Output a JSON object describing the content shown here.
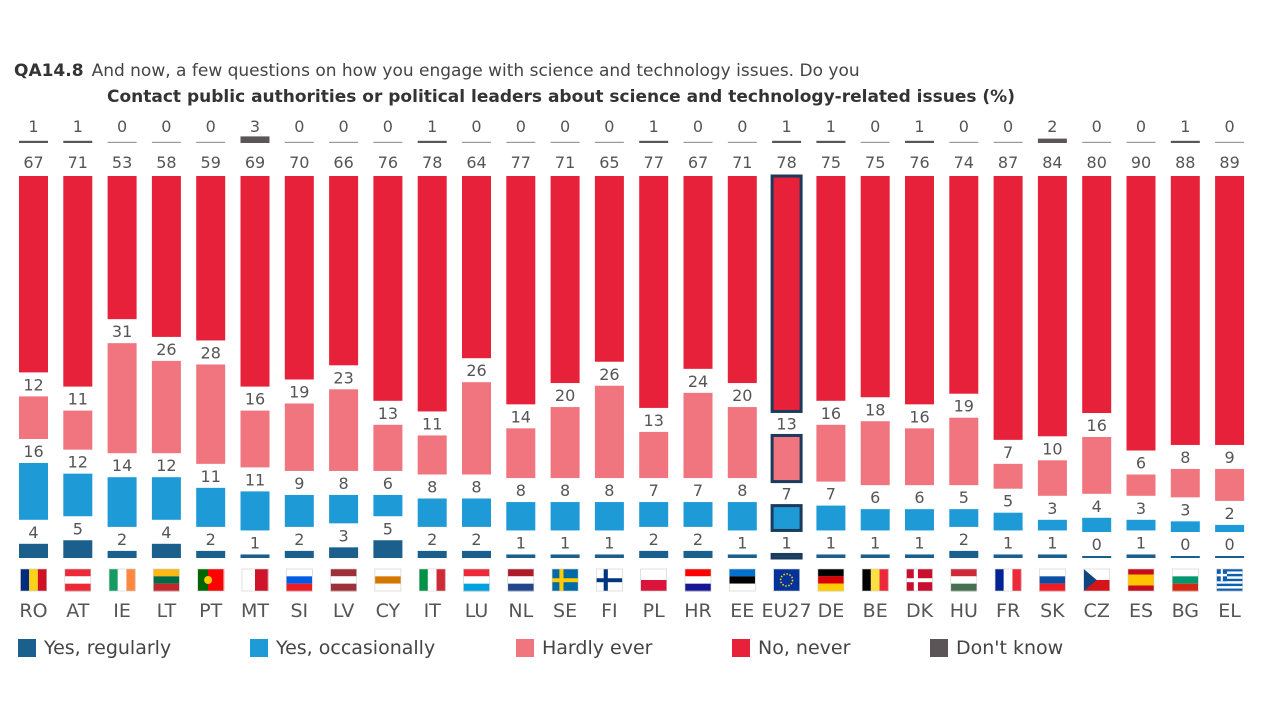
{
  "title": {
    "code": "QA14.8",
    "question": "And now, a few questions on how you engage with science and technology issues. Do you",
    "subtitle": "Contact public authorities or political leaders about science and technology-related issues (%)"
  },
  "colors": {
    "yes_regularly": "#1b5f8c",
    "yes_occasionally": "#1e9bd7",
    "hardly_ever": "#f0757e",
    "no_never": "#e8213a",
    "dont_know": "#5b5557",
    "highlight_border": "#1b3a5c"
  },
  "legend": [
    {
      "key": "yes_regularly",
      "label": "Yes, regularly"
    },
    {
      "key": "yes_occasionally",
      "label": "Yes, occasionally"
    },
    {
      "key": "hardly_ever",
      "label": "Hardly ever"
    },
    {
      "key": "no_never",
      "label": "No, never"
    },
    {
      "key": "dont_know",
      "label": "Don't know"
    }
  ],
  "chart_data": {
    "type": "bar",
    "stacked": true,
    "highlight": "EU27",
    "categories": [
      "RO",
      "AT",
      "IE",
      "LT",
      "PT",
      "MT",
      "SI",
      "LV",
      "CY",
      "IT",
      "LU",
      "NL",
      "SE",
      "FI",
      "PL",
      "HR",
      "EE",
      "EU27",
      "DE",
      "BE",
      "DK",
      "HU",
      "FR",
      "SK",
      "CZ",
      "ES",
      "BG",
      "EL"
    ],
    "flags": [
      "RO-flag",
      "AT-flag",
      "IE-flag",
      "LT-flag",
      "PT-flag",
      "MT-flag",
      "SI-flag",
      "LV-flag",
      "CY-flag",
      "IT-flag",
      "LU-flag",
      "NL-flag",
      "SE-flag",
      "FI-flag",
      "PL-flag",
      "HR-flag",
      "EE-flag",
      "EU27-flag",
      "DE-flag",
      "BE-flag",
      "DK-flag",
      "HU-flag",
      "FR-flag",
      "SK-flag",
      "CZ-flag",
      "ES-flag",
      "BG-flag",
      "EL-flag"
    ],
    "series": [
      {
        "name": "Yes, regularly",
        "key": "yes_regularly",
        "values": [
          4,
          5,
          2,
          4,
          2,
          1,
          2,
          3,
          5,
          2,
          2,
          1,
          1,
          1,
          2,
          2,
          1,
          1,
          1,
          1,
          1,
          2,
          1,
          1,
          0,
          1,
          0,
          0
        ]
      },
      {
        "name": "Yes, occasionally",
        "key": "yes_occasionally",
        "values": [
          16,
          12,
          14,
          12,
          11,
          11,
          9,
          8,
          6,
          8,
          8,
          8,
          8,
          8,
          7,
          7,
          8,
          7,
          7,
          6,
          6,
          5,
          5,
          3,
          4,
          3,
          3,
          2
        ]
      },
      {
        "name": "Hardly ever",
        "key": "hardly_ever",
        "values": [
          12,
          11,
          31,
          26,
          28,
          16,
          19,
          23,
          13,
          11,
          26,
          14,
          20,
          26,
          13,
          24,
          20,
          13,
          16,
          18,
          16,
          19,
          7,
          10,
          16,
          6,
          8,
          9
        ]
      },
      {
        "name": "No, never",
        "key": "no_never",
        "values": [
          67,
          71,
          53,
          58,
          59,
          69,
          70,
          66,
          76,
          78,
          64,
          77,
          71,
          65,
          77,
          67,
          71,
          78,
          75,
          75,
          76,
          74,
          87,
          84,
          80,
          90,
          88,
          89
        ]
      },
      {
        "name": "Don't know",
        "key": "dont_know",
        "values": [
          1,
          1,
          0,
          0,
          0,
          3,
          0,
          0,
          0,
          1,
          0,
          0,
          0,
          0,
          1,
          0,
          0,
          1,
          1,
          0,
          1,
          0,
          0,
          2,
          0,
          0,
          1,
          0
        ]
      }
    ]
  }
}
